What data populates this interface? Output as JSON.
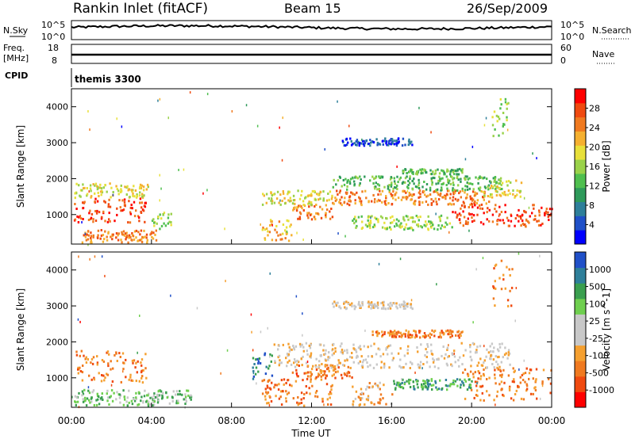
{
  "header": {
    "station": "Rankin Inlet (fitACF)",
    "beam": "Beam 15",
    "date": "26/Sep/2009"
  },
  "noise_panel": {
    "left_label": "N.Sky",
    "right_label": "N.Search",
    "ticks_left": [
      "10^5",
      "10^0"
    ],
    "ticks_right": [
      "10^5",
      "10^0"
    ]
  },
  "freq_panel": {
    "left_label_1": "Freq.",
    "left_label_2": "[MHz]",
    "right_label": "Nave",
    "ticks_left": [
      "18",
      "8"
    ],
    "ticks_right": [
      "60",
      "0"
    ]
  },
  "cpid_panel": {
    "label": "CPID",
    "value": "themis 3300"
  },
  "x_axis": {
    "label": "Time UT",
    "ticks": [
      "00:00",
      "04:00",
      "08:00",
      "12:00",
      "16:00",
      "20:00",
      "00:00"
    ]
  },
  "chart_data": [
    {
      "type": "heatmap",
      "name": "power",
      "xlabel": "Time UT",
      "ylabel": "Slant Range [km]",
      "x_range_hours": [
        0,
        24
      ],
      "y_range_km": [
        180,
        4500
      ],
      "y_ticks": [
        1000,
        2000,
        3000,
        4000
      ],
      "colorbar_label": "Power [dB]",
      "colorbar_ticks": [
        "28",
        "24",
        "20",
        "16",
        "12",
        "8",
        "4"
      ],
      "colors": [
        "#0000ff",
        "#2050c8",
        "#2e7f9a",
        "#2e9a5a",
        "#4fbf4f",
        "#9ad24a",
        "#e8e03a",
        "#f5b030",
        "#f07a20",
        "#f04a10",
        "#ff0000"
      ],
      "regions": [
        {
          "t": [
            0.1,
            3.7
          ],
          "r": [
            800,
            1500
          ],
          "level": 9
        },
        {
          "t": [
            0.1,
            3.8
          ],
          "r": [
            1500,
            1900
          ],
          "level": 6
        },
        {
          "t": [
            0.5,
            4.3
          ],
          "r": [
            250,
            600
          ],
          "level": 8
        },
        {
          "t": [
            4.0,
            5.0
          ],
          "r": [
            600,
            1100
          ],
          "level": 5
        },
        {
          "t": [
            9.5,
            11.0
          ],
          "r": [
            300,
            900
          ],
          "level": 7
        },
        {
          "t": [
            11.0,
            13.0
          ],
          "r": [
            900,
            1300
          ],
          "level": 8
        },
        {
          "t": [
            9.5,
            13.0
          ],
          "r": [
            1300,
            1700
          ],
          "level": 6
        },
        {
          "t": [
            13.0,
            21.0
          ],
          "r": [
            1300,
            1700
          ],
          "level": 8
        },
        {
          "t": [
            13.0,
            21.5
          ],
          "r": [
            1700,
            2100
          ],
          "level": 4
        },
        {
          "t": [
            14.0,
            19.0
          ],
          "r": [
            600,
            1000
          ],
          "level": 5
        },
        {
          "t": [
            19.0,
            24.0
          ],
          "r": [
            700,
            1300
          ],
          "level": 9
        },
        {
          "t": [
            20.5,
            22.5
          ],
          "r": [
            1500,
            2000
          ],
          "level": 6
        },
        {
          "t": [
            13.5,
            17.0
          ],
          "r": [
            2950,
            3150
          ],
          "level": 1
        },
        {
          "t": [
            16.5,
            19.5
          ],
          "r": [
            2150,
            2300
          ],
          "level": 4
        },
        {
          "t": [
            21.0,
            22.0
          ],
          "r": [
            3200,
            4300
          ],
          "level": 5
        }
      ]
    },
    {
      "type": "heatmap",
      "name": "velocity",
      "xlabel": "Time UT",
      "ylabel": "Slant Range [km]",
      "x_range_hours": [
        0,
        24
      ],
      "y_range_km": [
        180,
        4500
      ],
      "y_ticks": [
        1000,
        2000,
        3000,
        4000
      ],
      "colorbar_label": "Velocity [m s^-1]",
      "colorbar_ticks": [
        "1000",
        "500",
        "100",
        "25",
        "-25",
        "-100",
        "-500",
        "-1000"
      ],
      "colors": [
        "#ff0000",
        "#f04a10",
        "#f07a20",
        "#f5a030",
        "#c8c8c8",
        "#c8c8c8",
        "#6fcf4f",
        "#3a9f4f",
        "#2e7f9a",
        "#2050c8"
      ],
      "regions": [
        {
          "t": [
            0.2,
            3.7
          ],
          "r": [
            900,
            1800
          ],
          "level": 2
        },
        {
          "t": [
            0.1,
            4.5
          ],
          "r": [
            250,
            700
          ],
          "level": 6
        },
        {
          "t": [
            4.0,
            6.0
          ],
          "r": [
            300,
            700
          ],
          "level": 6
        },
        {
          "t": [
            9.0,
            10.0
          ],
          "r": [
            1000,
            1800
          ],
          "level": 8
        },
        {
          "t": [
            9.5,
            13.0
          ],
          "r": [
            250,
            1000
          ],
          "level": 2
        },
        {
          "t": [
            11.0,
            14.0
          ],
          "r": [
            1000,
            1400
          ],
          "level": 2
        },
        {
          "t": [
            10.0,
            22.0
          ],
          "r": [
            1300,
            2000
          ],
          "level": 4
        },
        {
          "t": [
            14.0,
            16.0
          ],
          "r": [
            250,
            900
          ],
          "level": 3
        },
        {
          "t": [
            16.0,
            20.0
          ],
          "r": [
            700,
            1000
          ],
          "level": 7
        },
        {
          "t": [
            19.5,
            24.0
          ],
          "r": [
            400,
            1300
          ],
          "level": 2
        },
        {
          "t": [
            15.0,
            19.5
          ],
          "r": [
            2150,
            2350
          ],
          "level": 2
        },
        {
          "t": [
            13.0,
            17.0
          ],
          "r": [
            2950,
            3150
          ],
          "level": 4
        },
        {
          "t": [
            21.0,
            22.0
          ],
          "r": [
            3000,
            4300
          ],
          "level": 2
        }
      ]
    }
  ]
}
